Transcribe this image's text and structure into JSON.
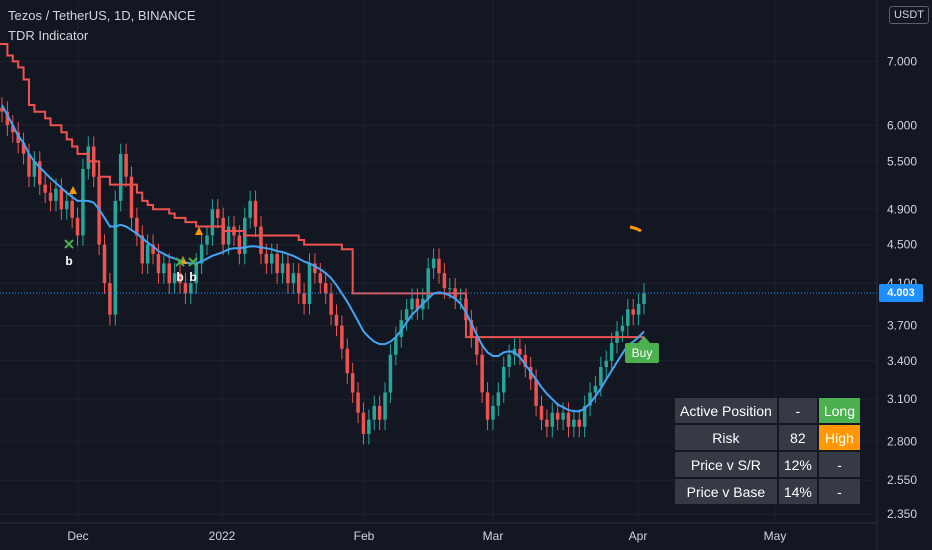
{
  "legend": {
    "title": "Tezos / TetherUS, 1D, BINANCE",
    "indicator": "TDR Indicator"
  },
  "currency_button": "USDT",
  "price_label": "4.003",
  "buy_label": "Buy",
  "signal_letters": [
    "b",
    "b",
    "b"
  ],
  "table": {
    "rows": [
      [
        "Active Position",
        "-",
        "Long"
      ],
      [
        "Risk",
        "82",
        "High"
      ],
      [
        "Price v S/R",
        "12%",
        "-"
      ],
      [
        "Price v Base",
        "14%",
        "-"
      ]
    ]
  },
  "colors": {
    "background": "#131722",
    "up_candle": "#26a69a",
    "down_candle": "#ef5350",
    "resistance_line": "#ef5350",
    "base_line": "#42a5f5",
    "signal_triangle": "#ff9800",
    "signal_x": "#4caf50",
    "long_cell": "#4caf50",
    "high_cell": "#ff9800",
    "price_badge": "#1e8fff"
  },
  "chart_data": {
    "type": "candlestick",
    "symbol": "Tezos / TetherUS",
    "timeframe": "1D",
    "exchange": "BINANCE",
    "y_scale": "log",
    "ylim": [
      2.25,
      8.0
    ],
    "y_ticks": [
      "7.000",
      "6.000",
      "5.500",
      "4.900",
      "4.500",
      "4.100",
      "3.700",
      "3.400",
      "3.100",
      "2.800",
      "2.550",
      "2.350"
    ],
    "x_ticks": [
      "Dec",
      "2022",
      "Feb",
      "Mar",
      "Apr",
      "May"
    ],
    "last_price": 4.003,
    "close_series": [
      6.2,
      6.0,
      5.9,
      5.75,
      5.6,
      5.3,
      5.5,
      5.2,
      5.1,
      5.0,
      5.15,
      4.9,
      5.0,
      4.8,
      4.6,
      5.4,
      5.7,
      5.3,
      4.5,
      4.1,
      3.8,
      5.0,
      5.6,
      5.3,
      4.8,
      4.6,
      4.3,
      4.5,
      4.4,
      4.2,
      4.3,
      4.1,
      4.2,
      4.1,
      4.0,
      4.1,
      4.3,
      4.5,
      4.6,
      4.9,
      4.8,
      4.5,
      4.7,
      4.6,
      4.4,
      4.8,
      5.0,
      4.7,
      4.4,
      4.3,
      4.4,
      4.2,
      4.3,
      4.1,
      4.2,
      4.0,
      3.9,
      4.3,
      4.2,
      4.1,
      4.0,
      3.8,
      3.7,
      3.5,
      3.3,
      3.15,
      3.0,
      2.85,
      2.95,
      3.05,
      2.95,
      3.15,
      3.45,
      3.6,
      3.75,
      3.85,
      3.95,
      3.85,
      3.95,
      4.25,
      4.35,
      4.2,
      4.05,
      4.05,
      3.95,
      3.95,
      3.75,
      3.6,
      3.45,
      3.15,
      2.95,
      3.05,
      3.15,
      3.35,
      3.45,
      3.5,
      3.45,
      3.35,
      3.25,
      3.05,
      2.95,
      2.9,
      3.0,
      2.95,
      3.0,
      2.9,
      2.95,
      2.9,
      3.05,
      3.15,
      3.2,
      3.35,
      3.4,
      3.55,
      3.65,
      3.7,
      3.85,
      3.8,
      3.9,
      4.0
    ],
    "series": [
      {
        "name": "resistance",
        "values": [
          7.3,
          7.1,
          7.0,
          6.9,
          6.7,
          6.3,
          6.2,
          6.2,
          6.1,
          6.0,
          6.0,
          5.9,
          5.8,
          5.7,
          5.6,
          5.6,
          5.5,
          5.5,
          5.3,
          5.3,
          5.2,
          5.2,
          5.2,
          5.2,
          5.2,
          5.1,
          5.0,
          4.95,
          4.9,
          4.9,
          4.9,
          4.85,
          4.8,
          4.8,
          4.75,
          4.75,
          4.7,
          4.7,
          4.7,
          4.7,
          4.7,
          4.65,
          4.65,
          4.65,
          4.65,
          4.6,
          4.6,
          4.6,
          4.6,
          4.6,
          4.6,
          4.6,
          4.6,
          4.6,
          4.6,
          4.55,
          4.5,
          4.5,
          4.5,
          4.5,
          4.5,
          4.5,
          4.5,
          4.45,
          4.45,
          4.0,
          4.0,
          4.0,
          4.0,
          4.0,
          4.0,
          4.0,
          4.0,
          4.0,
          4.0,
          4.0,
          4.0,
          4.0,
          4.0,
          4.0,
          4.0,
          4.0,
          4.0,
          4.0,
          4.0,
          4.0,
          3.6,
          3.6,
          3.6,
          3.6,
          3.6,
          3.6,
          3.6,
          3.6,
          3.6,
          3.6,
          3.6,
          3.6,
          3.6,
          3.6,
          3.6,
          3.6,
          3.6,
          3.6,
          3.6,
          3.6,
          3.6,
          3.6,
          3.6,
          3.6,
          3.6,
          3.6,
          3.6,
          3.6,
          3.6,
          3.6,
          3.6,
          3.6,
          3.6,
          3.6
        ]
      },
      {
        "name": "base",
        "values": [
          6.3,
          6.15,
          6.0,
          5.85,
          5.75,
          5.6,
          5.5,
          5.42,
          5.35,
          5.28,
          5.22,
          5.16,
          5.1,
          5.05,
          5.0,
          5.0,
          5.0,
          4.98,
          4.9,
          4.8,
          4.7,
          4.7,
          4.72,
          4.7,
          4.66,
          4.62,
          4.57,
          4.52,
          4.48,
          4.43,
          4.4,
          4.37,
          4.35,
          4.33,
          4.31,
          4.3,
          4.3,
          4.32,
          4.35,
          4.38,
          4.4,
          4.42,
          4.45,
          4.46,
          4.46,
          4.47,
          4.48,
          4.48,
          4.47,
          4.46,
          4.45,
          4.43,
          4.42,
          4.4,
          4.38,
          4.35,
          4.32,
          4.3,
          4.27,
          4.24,
          4.2,
          4.15,
          4.08,
          4.0,
          3.92,
          3.83,
          3.74,
          3.65,
          3.6,
          3.56,
          3.54,
          3.54,
          3.56,
          3.6,
          3.66,
          3.73,
          3.8,
          3.85,
          3.9,
          3.95,
          4.0,
          4.01,
          4.0,
          3.98,
          3.95,
          3.9,
          3.82,
          3.72,
          3.62,
          3.53,
          3.47,
          3.44,
          3.44,
          3.47,
          3.48,
          3.47,
          3.43,
          3.37,
          3.31,
          3.25,
          3.19,
          3.14,
          3.1,
          3.06,
          3.04,
          3.02,
          3.01,
          3.01,
          3.03,
          3.07,
          3.12,
          3.18,
          3.25,
          3.32,
          3.39,
          3.46,
          3.53,
          3.56,
          3.6,
          3.65
        ]
      }
    ]
  }
}
